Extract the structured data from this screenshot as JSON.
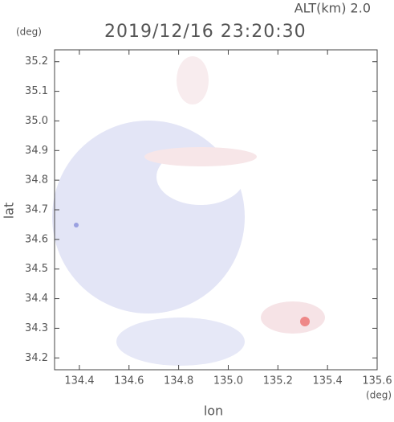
{
  "chart_data": {
    "type": "image",
    "title": "2019/12/16 23:20:30",
    "annotation": "ALT(km)  2.0",
    "xlabel": "lon",
    "ylabel": "lat",
    "x_unit": "(deg)",
    "y_unit": "(deg)",
    "xlim": [
      134.3,
      135.6
    ],
    "ylim": [
      34.16,
      35.24
    ],
    "xticks": [
      {
        "value": 134.4,
        "label": "134.4"
      },
      {
        "value": 134.6,
        "label": "134.6"
      },
      {
        "value": 134.8,
        "label": "134.8"
      },
      {
        "value": 135.0,
        "label": "135.0"
      },
      {
        "value": 135.2,
        "label": "135.2"
      },
      {
        "value": 135.4,
        "label": "135.4"
      },
      {
        "value": 135.6,
        "label": "135.6"
      }
    ],
    "yticks": [
      {
        "value": 34.2,
        "label": "34.2"
      },
      {
        "value": 34.3,
        "label": "34.3"
      },
      {
        "value": 34.4,
        "label": "34.4"
      },
      {
        "value": 34.5,
        "label": "34.5"
      },
      {
        "value": 34.6,
        "label": "34.6"
      },
      {
        "value": 34.7,
        "label": "34.7"
      },
      {
        "value": 34.8,
        "label": "34.8"
      },
      {
        "value": 34.9,
        "label": "34.9"
      },
      {
        "value": 35.0,
        "label": "35.0"
      },
      {
        "value": 35.1,
        "label": "35.1"
      },
      {
        "value": 35.2,
        "label": "35.2"
      }
    ]
  }
}
